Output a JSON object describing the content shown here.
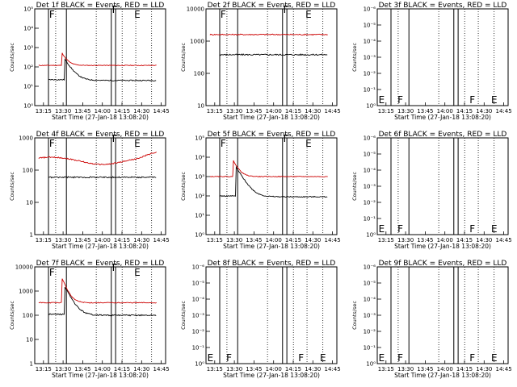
{
  "chart_data": [
    {
      "type": "line",
      "title": "Det 1f BLACK = Events, RED = LLD",
      "xlabel": "Start Time (27-Jan-18 13:08:20)",
      "ylabel": "Counts/sec",
      "y_scale": "log",
      "ylim_exp": [
        0,
        5
      ],
      "ytick_labels": [
        "10⁰",
        "10¹",
        "10²",
        "10³",
        "10⁴",
        "10⁵"
      ],
      "xtick_labels": [
        "13:15",
        "13:30",
        "13:45",
        "14:00",
        "14:15",
        "14:30",
        "14:45"
      ],
      "flags": [
        "F",
        "F",
        "E"
      ],
      "series": [
        {
          "color": "#cc0000",
          "kind": "red-flat",
          "level": 120,
          "peak": 400
        },
        {
          "color": "#000000",
          "kind": "black-decay",
          "level": 20,
          "peak": 250
        }
      ]
    },
    {
      "type": "line",
      "title": "Det 2f BLACK = Events, RED = LLD",
      "xlabel": "Start Time (27-Jan-18 13:08:20)",
      "ylabel": "Counts/sec",
      "y_scale": "log",
      "ylim_exp": [
        1,
        4
      ],
      "ytick_labels": [
        "10",
        "100",
        "1000",
        "10000"
      ],
      "xtick_labels": [
        "13:15",
        "13:30",
        "13:45",
        "14:00",
        "14:15",
        "14:30",
        "14:45"
      ],
      "flags": [
        "F",
        "F",
        "E"
      ],
      "series": [
        {
          "color": "#cc0000",
          "kind": "red-flat",
          "level": 1600,
          "peak": 1600
        },
        {
          "color": "#000000",
          "kind": "black-flat",
          "level": 380,
          "peak": 380
        }
      ]
    },
    {
      "type": "line",
      "title": "Det 3f BLACK = Events, RED = LLD",
      "xlabel": "Start Time (27-Jan-18 13:08:20)",
      "ylabel": "Counts/sec",
      "y_scale": "log",
      "ylim_exp": [
        0,
        -6
      ],
      "ytick_labels": [
        "10⁰",
        "10⁻¹",
        "10⁻²",
        "10⁻³",
        "10⁻⁴",
        "10⁻⁵",
        "10⁻⁶"
      ],
      "xtick_labels": [
        "13:15",
        "13:30",
        "13:45",
        "14:00",
        "14:15",
        "14:30",
        "14:45"
      ],
      "flags": [
        "E",
        "F",
        "F",
        "E"
      ],
      "series": []
    },
    {
      "type": "line",
      "title": "Det 4f BLACK = Events, RED = LLD",
      "xlabel": "Start Time (27-Jan-18 13:08:20)",
      "ylabel": "Counts/sec",
      "y_scale": "log",
      "ylim_exp": [
        0,
        3
      ],
      "ytick_labels": [
        "1",
        "10",
        "100",
        "1000"
      ],
      "xtick_labels": [
        "13:15",
        "13:30",
        "13:45",
        "14:00",
        "14:15",
        "14:30",
        "14:45"
      ],
      "flags": [
        "F",
        "F",
        "E"
      ],
      "series": [
        {
          "color": "#cc0000",
          "kind": "red-wave",
          "level": 200,
          "peak": 300
        },
        {
          "color": "#000000",
          "kind": "black-flat",
          "level": 60,
          "peak": 60
        }
      ]
    },
    {
      "type": "line",
      "title": "Det 5f BLACK = Events, RED = LLD",
      "xlabel": "Start Time (27-Jan-18 13:08:20)",
      "ylabel": "Counts/sec",
      "y_scale": "log",
      "ylim_exp": [
        0,
        5
      ],
      "ytick_labels": [
        "10⁰",
        "10¹",
        "10²",
        "10³",
        "10⁴",
        "10⁵"
      ],
      "xtick_labels": [
        "13:15",
        "13:30",
        "13:45",
        "14:00",
        "14:15",
        "14:30",
        "14:45"
      ],
      "flags": [
        "F",
        "F",
        "E"
      ],
      "series": [
        {
          "color": "#cc0000",
          "kind": "red-flat",
          "level": 1000,
          "peak": 5000
        },
        {
          "color": "#000000",
          "kind": "black-decay",
          "level": 90,
          "peak": 3000
        }
      ]
    },
    {
      "type": "line",
      "title": "Det 6f BLACK = Events, RED = LLD",
      "xlabel": "Start Time (27-Jan-18 13:08:20)",
      "ylabel": "Counts/sec",
      "y_scale": "log",
      "ylim_exp": [
        0,
        -6
      ],
      "ytick_labels": [
        "10⁰",
        "10⁻¹",
        "10⁻²",
        "10⁻³",
        "10⁻⁴",
        "10⁻⁵",
        "10⁻⁶"
      ],
      "xtick_labels": [
        "13:15",
        "13:30",
        "13:45",
        "14:00",
        "14:15",
        "14:30",
        "14:45"
      ],
      "flags": [
        "E",
        "F",
        "F",
        "E"
      ],
      "series": []
    },
    {
      "type": "line",
      "title": "Det 7f BLACK = Events, RED = LLD",
      "xlabel": "Start Time (27-Jan-18 13:08:20)",
      "ylabel": "Counts/sec",
      "y_scale": "log",
      "ylim_exp": [
        0,
        4
      ],
      "ytick_labels": [
        "1",
        "10",
        "100",
        "1000",
        "10000"
      ],
      "xtick_labels": [
        "13:15",
        "13:30",
        "13:45",
        "14:00",
        "14:15",
        "14:30",
        "14:45"
      ],
      "flags": [
        "F",
        "F",
        "E"
      ],
      "series": [
        {
          "color": "#cc0000",
          "kind": "red-flat",
          "level": 330,
          "peak": 2500
        },
        {
          "color": "#000000",
          "kind": "black-decay",
          "level": 100,
          "peak": 1500
        }
      ]
    },
    {
      "type": "line",
      "title": "Det 8f BLACK = Events, RED = LLD",
      "xlabel": "Start Time (27-Jan-18 13:08:20)",
      "ylabel": "Counts/sec",
      "y_scale": "log",
      "ylim_exp": [
        0,
        -6
      ],
      "ytick_labels": [
        "10⁰",
        "10⁻¹",
        "10⁻²",
        "10⁻³",
        "10⁻⁴",
        "10⁻⁵",
        "10⁻⁶"
      ],
      "xtick_labels": [
        "13:15",
        "13:30",
        "13:45",
        "14:00",
        "14:15",
        "14:30",
        "14:45"
      ],
      "flags": [
        "E",
        "F",
        "F",
        "E"
      ],
      "series": []
    },
    {
      "type": "line",
      "title": "Det 9f BLACK = Events, RED = LLD",
      "xlabel": "Start Time (27-Jan-18 13:08:20)",
      "ylabel": "Counts/sec",
      "y_scale": "log",
      "ylim_exp": [
        0,
        -6
      ],
      "ytick_labels": [
        "10⁰",
        "10⁻¹",
        "10⁻²",
        "10⁻³",
        "10⁻⁴",
        "10⁻⁵",
        "10⁻⁶"
      ],
      "xtick_labels": [
        "13:15",
        "13:30",
        "13:45",
        "14:00",
        "14:15",
        "14:30",
        "14:45"
      ],
      "flags": [
        "E",
        "F",
        "F",
        "E"
      ],
      "series": []
    }
  ]
}
